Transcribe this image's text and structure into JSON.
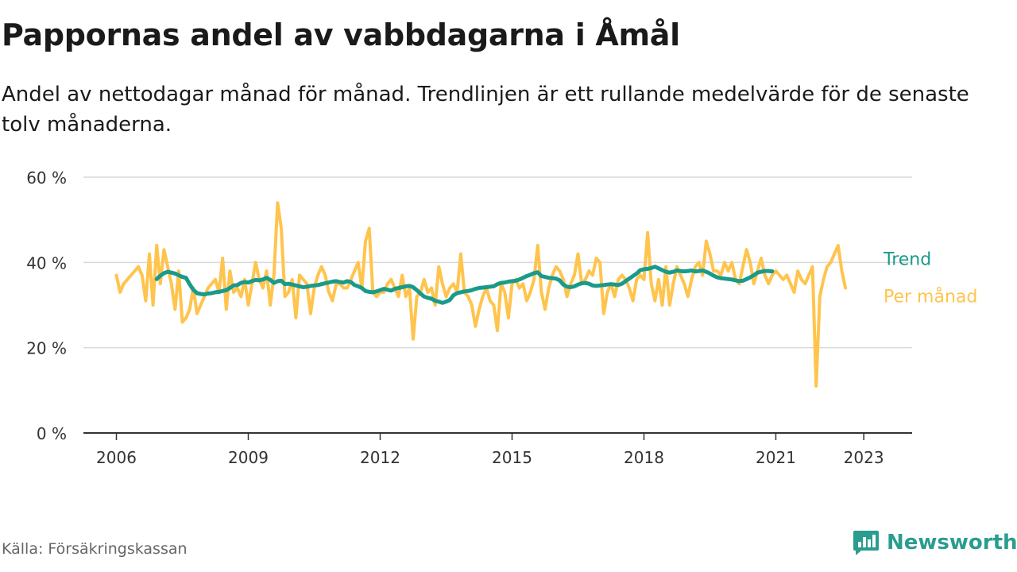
{
  "title": "Pappornas andel av vabbdagarna i Åmål",
  "subtitle": "Andel av nettodagar månad för månad. Trendlinjen är ett rullande medelvärde för de senaste tolv månaderna.",
  "source": "Källa: Försäkringskassan",
  "brand": {
    "name": "Newsworthy",
    "icon": "newsworthy-logo-icon",
    "color": "#2a9d8f"
  },
  "chart_data": {
    "type": "line",
    "x_start": "2006-01",
    "frequency": "monthly",
    "ylim": [
      0,
      60
    ],
    "xlim": [
      2005.25,
      2024.1
    ],
    "y_ticks": [
      0,
      20,
      40,
      60
    ],
    "y_tick_labels": [
      "0 %",
      "20 %",
      "40 %",
      "60 %"
    ],
    "x_ticks": [
      2006,
      2009,
      2012,
      2015,
      2018,
      2021,
      2023
    ],
    "x_tick_labels": [
      "2006",
      "2009",
      "2012",
      "2015",
      "2018",
      "2021",
      "2023"
    ],
    "grid": true,
    "legend": "direct labels at line ends",
    "series": [
      {
        "name": "Per månad",
        "color": "#ffc44d",
        "values": [
          37,
          33,
          35,
          36,
          37,
          38,
          39,
          37,
          31,
          42,
          30,
          44,
          35,
          43,
          39,
          35,
          29,
          38,
          26,
          27,
          29,
          34,
          28,
          30,
          32,
          34,
          35,
          36,
          33,
          41,
          29,
          38,
          33,
          34,
          32,
          36,
          30,
          35,
          40,
          36,
          34,
          38,
          30,
          37,
          54,
          48,
          32,
          33,
          36,
          27,
          37,
          36,
          35,
          28,
          34,
          37,
          39,
          37,
          33,
          31,
          35,
          35,
          34,
          34,
          36,
          38,
          40,
          34,
          45,
          48,
          33,
          32,
          33,
          33,
          35,
          36,
          34,
          32,
          37,
          32,
          34,
          22,
          32,
          33,
          36,
          33,
          34,
          30,
          39,
          35,
          32,
          34,
          35,
          33,
          42,
          33,
          32,
          30,
          25,
          29,
          32,
          34,
          31,
          30,
          24,
          35,
          33,
          27,
          35,
          36,
          34,
          35,
          31,
          33,
          36,
          44,
          33,
          29,
          34,
          37,
          39,
          38,
          36,
          32,
          35,
          37,
          42,
          35,
          36,
          38,
          37,
          41,
          40,
          28,
          33,
          35,
          32,
          36,
          37,
          36,
          34,
          31,
          36,
          37,
          36,
          47,
          35,
          31,
          36,
          30,
          39,
          30,
          35,
          39,
          37,
          35,
          32,
          36,
          39,
          40,
          37,
          45,
          42,
          38,
          38,
          37,
          40,
          38,
          40,
          36,
          35,
          39,
          43,
          40,
          35,
          38,
          41,
          37,
          35,
          37,
          38,
          37,
          36,
          37,
          35,
          33,
          38,
          36,
          35,
          37,
          39,
          11,
          32,
          36,
          39,
          40,
          42,
          44,
          38,
          34
        ]
      },
      {
        "name": "Trend",
        "color": "#1a9a8a",
        "start_index": 11,
        "values": [
          36.1,
          36.9,
          37.5,
          37.8,
          37.6,
          37.4,
          37.0,
          36.6,
          36.4,
          34.9,
          33.6,
          32.8,
          32.6,
          32.5,
          32.7,
          32.8,
          33.0,
          33.1,
          33.3,
          33.5,
          34.0,
          34.6,
          34.7,
          35.2,
          35.4,
          35.3,
          35.6,
          35.9,
          35.8,
          36.0,
          36.4,
          35.9,
          35.2,
          35.6,
          35.7,
          34.9,
          35.0,
          34.8,
          34.6,
          34.4,
          34.2,
          34.3,
          34.5,
          34.6,
          34.7,
          34.9,
          35.1,
          35.3,
          35.5,
          35.6,
          35.4,
          35.3,
          35.6,
          35.4,
          34.7,
          34.4,
          34.0,
          33.3,
          33.1,
          33.0,
          33.2,
          33.5,
          33.8,
          33.6,
          33.4,
          33.8,
          34.0,
          34.2,
          34.4,
          34.5,
          34.2,
          33.5,
          32.7,
          32.0,
          31.7,
          31.5,
          31.0,
          30.8,
          30.5,
          30.8,
          31.2,
          32.3,
          32.8,
          33.0,
          33.2,
          33.3,
          33.5,
          33.8,
          34.0,
          34.1,
          34.2,
          34.3,
          34.4,
          34.9,
          35.2,
          35.3,
          35.5,
          35.6,
          35.7,
          36.0,
          36.4,
          36.8,
          37.1,
          37.5,
          37.7,
          36.8,
          36.6,
          36.4,
          36.3,
          36.2,
          35.8,
          34.8,
          34.3,
          34.2,
          34.4,
          34.8,
          35.1,
          35.2,
          35.0,
          34.6,
          34.5,
          34.6,
          34.7,
          34.8,
          34.9,
          34.8,
          34.7,
          35.0,
          35.6,
          36.2,
          36.8,
          37.4,
          38.2,
          38.4,
          38.5,
          38.7,
          39.0,
          38.6,
          38.2,
          37.8,
          37.6,
          37.8,
          38.1,
          38.0,
          37.9,
          38.0,
          38.1,
          37.9,
          38.0,
          38.1,
          37.8,
          37.4,
          36.9,
          36.5,
          36.3,
          36.2,
          36.1,
          36.0,
          35.8,
          35.6,
          35.7,
          36.1,
          36.5,
          37.0,
          37.6,
          37.8,
          38.0,
          38.0,
          37.9
        ]
      }
    ]
  }
}
